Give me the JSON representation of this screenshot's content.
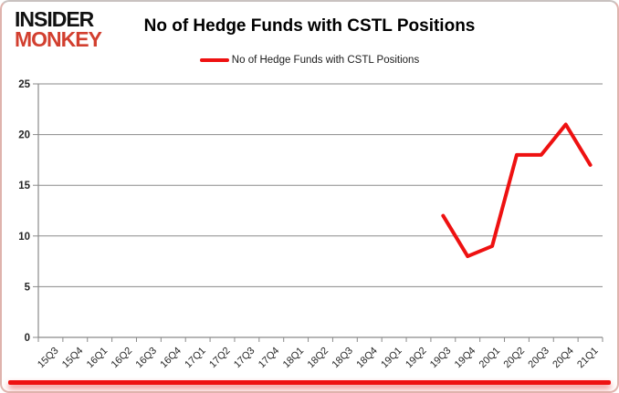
{
  "logo": {
    "line1": "INSIDER",
    "line2": "MONKEY"
  },
  "header": {
    "title": "No of Hedge Funds with CSTL Positions"
  },
  "legend": {
    "label": "No of Hedge Funds with CSTL Positions"
  },
  "chart_data": {
    "type": "line",
    "title": "No of Hedge Funds with CSTL Positions",
    "categories": [
      "15Q3",
      "15Q4",
      "16Q1",
      "16Q2",
      "16Q3",
      "16Q4",
      "17Q1",
      "17Q2",
      "17Q3",
      "17Q4",
      "18Q1",
      "18Q2",
      "18Q3",
      "18Q4",
      "19Q1",
      "19Q2",
      "19Q3",
      "19Q4",
      "20Q1",
      "20Q2",
      "20Q3",
      "20Q4",
      "21Q1"
    ],
    "series": [
      {
        "name": "No of Hedge Funds with CSTL Positions",
        "values": [
          null,
          null,
          null,
          null,
          null,
          null,
          null,
          null,
          null,
          null,
          null,
          null,
          null,
          null,
          null,
          null,
          12,
          8,
          9,
          18,
          18,
          21,
          17
        ]
      }
    ],
    "ylim": [
      0,
      25
    ],
    "yticks": [
      0,
      5,
      10,
      15,
      20,
      25
    ],
    "grid": true,
    "legend_position": "top"
  },
  "colors": {
    "line": "#ee1111",
    "grid": "#8a8a8a",
    "axis": "#8a8a8a",
    "tick_text": "#262626",
    "logo_red": "#d23f2f",
    "bottom_bar": "#ee1111",
    "bottom_glow": "rgba(221,0,0,0.55)"
  }
}
